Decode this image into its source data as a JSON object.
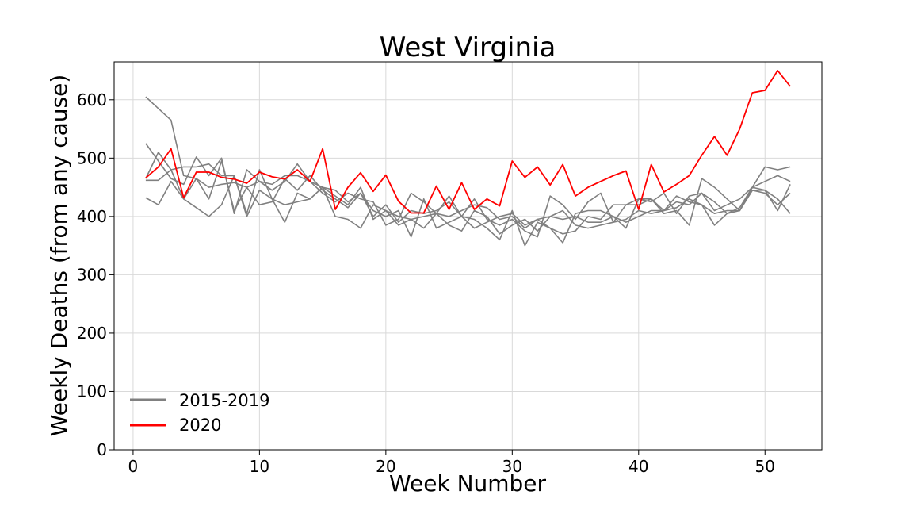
{
  "chart_data": {
    "type": "line",
    "title": "West Virginia",
    "xlabel": "Week Number",
    "ylabel": "Weekly Deaths (from any cause)",
    "xlim": [
      -1.5,
      54.5
    ],
    "ylim": [
      0,
      665
    ],
    "xticks": [
      0,
      10,
      20,
      30,
      40,
      50
    ],
    "yticks": [
      0,
      100,
      200,
      300,
      400,
      500,
      600
    ],
    "grid": true,
    "legend_position": "lower-left",
    "legend": [
      {
        "label": "2015-2019",
        "color": "#808080"
      },
      {
        "label": "2020",
        "color": "#ff0000"
      }
    ],
    "series": [
      {
        "group": "2015-2019",
        "color": "#808080",
        "x": [
          1,
          2,
          3,
          4,
          5,
          6,
          7,
          8,
          9,
          10,
          11,
          12,
          13,
          14,
          15,
          16,
          17,
          18,
          19,
          20,
          21,
          22,
          23,
          24,
          25,
          26,
          27,
          28,
          29,
          30,
          31,
          32,
          33,
          34,
          35,
          36,
          37,
          38,
          39,
          40,
          41,
          42,
          43,
          44,
          45,
          46,
          47,
          48,
          49,
          50,
          51,
          52
        ],
        "values": [
          605,
          585,
          565,
          470,
          465,
          450,
          455,
          458,
          450,
          460,
          455,
          470,
          470,
          460,
          450,
          435,
          420,
          450,
          395,
          410,
          400,
          395,
          400,
          405,
          400,
          410,
          420,
          415,
          395,
          400,
          380,
          395,
          400,
          410,
          385,
          380,
          385,
          390,
          395,
          410,
          405,
          410,
          425,
          420,
          440,
          410,
          420,
          430,
          450,
          485,
          480,
          485
        ]
      },
      {
        "group": "2015-2019",
        "color": "#808080",
        "x": [
          1,
          2,
          3,
          4,
          5,
          6,
          7,
          8,
          9,
          10,
          11,
          12,
          13,
          14,
          15,
          16,
          17,
          18,
          19,
          20,
          21,
          22,
          23,
          24,
          25,
          26,
          27,
          28,
          29,
          30,
          31,
          32,
          33,
          34,
          35,
          36,
          37,
          38,
          39,
          40,
          41,
          42,
          43,
          44,
          45,
          46,
          47,
          48,
          49,
          50,
          51,
          52
        ],
        "values": [
          525,
          495,
          465,
          455,
          502,
          470,
          500,
          405,
          480,
          460,
          445,
          460,
          490,
          460,
          440,
          425,
          440,
          430,
          425,
          385,
          395,
          440,
          425,
          405,
          435,
          400,
          430,
          395,
          385,
          395,
          375,
          365,
          435,
          420,
          395,
          425,
          440,
          390,
          420,
          430,
          425,
          440,
          405,
          435,
          440,
          425,
          405,
          415,
          450,
          445,
          430,
          405
        ]
      },
      {
        "group": "2015-2019",
        "color": "#808080",
        "x": [
          1,
          2,
          3,
          4,
          5,
          6,
          7,
          8,
          9,
          10,
          11,
          12,
          13,
          14,
          15,
          16,
          17,
          18,
          19,
          20,
          21,
          22,
          23,
          24,
          25,
          26,
          27,
          28,
          29,
          30,
          31,
          32,
          33,
          34,
          35,
          36,
          37,
          38,
          39,
          40,
          41,
          42,
          43,
          44,
          45,
          46,
          47,
          48,
          49,
          50,
          51,
          52
        ],
        "values": [
          462,
          462,
          480,
          485,
          485,
          490,
          470,
          470,
          405,
          480,
          430,
          390,
          440,
          430,
          450,
          400,
          395,
          380,
          420,
          410,
          385,
          395,
          380,
          405,
          385,
          375,
          410,
          400,
          370,
          385,
          395,
          375,
          400,
          395,
          400,
          390,
          390,
          400,
          380,
          430,
          430,
          405,
          410,
          385,
          465,
          450,
          430,
          410,
          450,
          460,
          470,
          460
        ]
      },
      {
        "group": "2015-2019",
        "color": "#808080",
        "x": [
          1,
          2,
          3,
          4,
          5,
          6,
          7,
          8,
          9,
          10,
          11,
          12,
          13,
          14,
          15,
          16,
          17,
          18,
          19,
          20,
          21,
          22,
          23,
          24,
          25,
          26,
          27,
          28,
          29,
          30,
          31,
          32,
          33,
          34,
          35,
          36,
          37,
          38,
          39,
          40,
          41,
          42,
          43,
          44,
          45,
          46,
          47,
          48,
          49,
          50,
          51,
          52
        ],
        "values": [
          465,
          510,
          480,
          430,
          465,
          430,
          495,
          410,
          450,
          420,
          425,
          465,
          445,
          470,
          445,
          430,
          415,
          440,
          410,
          400,
          410,
          365,
          430,
          380,
          390,
          400,
          395,
          380,
          360,
          410,
          350,
          390,
          380,
          355,
          405,
          410,
          410,
          400,
          390,
          400,
          410,
          410,
          415,
          430,
          420,
          385,
          405,
          410,
          445,
          445,
          410,
          455
        ]
      },
      {
        "group": "2015-2019",
        "color": "#808080",
        "x": [
          1,
          2,
          3,
          4,
          5,
          6,
          7,
          8,
          9,
          10,
          11,
          12,
          13,
          14,
          15,
          16,
          17,
          18,
          19,
          20,
          21,
          22,
          23,
          24,
          25,
          26,
          27,
          28,
          29,
          30,
          31,
          32,
          33,
          34,
          35,
          36,
          37,
          38,
          39,
          40,
          41,
          42,
          43,
          44,
          45,
          46,
          47,
          48,
          49,
          50,
          51,
          52
        ],
        "values": [
          432,
          420,
          460,
          430,
          415,
          400,
          420,
          470,
          400,
          445,
          430,
          420,
          425,
          430,
          450,
          445,
          425,
          440,
          400,
          420,
          390,
          410,
          405,
          410,
          425,
          400,
          380,
          390,
          400,
          405,
          385,
          395,
          380,
          370,
          375,
          400,
          395,
          420,
          420,
          420,
          430,
          410,
          435,
          425,
          420,
          405,
          410,
          410,
          445,
          440,
          420,
          440
        ]
      },
      {
        "group": "2020",
        "color": "#ff0000",
        "x": [
          1,
          2,
          3,
          4,
          5,
          6,
          7,
          8,
          9,
          10,
          11,
          12,
          13,
          14,
          15,
          16,
          17,
          18,
          19,
          20,
          21,
          22,
          23,
          24,
          25,
          26,
          27,
          28,
          29,
          30,
          31,
          32,
          33,
          34,
          35,
          36,
          37,
          38,
          39,
          40,
          41,
          42,
          43,
          44,
          45,
          46,
          47,
          48,
          49,
          50,
          51,
          52
        ],
        "values": [
          466,
          485,
          516,
          432,
          476,
          476,
          467,
          464,
          457,
          476,
          468,
          464,
          480,
          460,
          516,
          412,
          450,
          475,
          443,
          471,
          426,
          406,
          406,
          452,
          412,
          458,
          412,
          430,
          418,
          495,
          467,
          485,
          454,
          489,
          435,
          450,
          460,
          470,
          478,
          412,
          489,
          442,
          455,
          470,
          505,
          537,
          505,
          550,
          612,
          616,
          650,
          623
        ]
      }
    ]
  }
}
